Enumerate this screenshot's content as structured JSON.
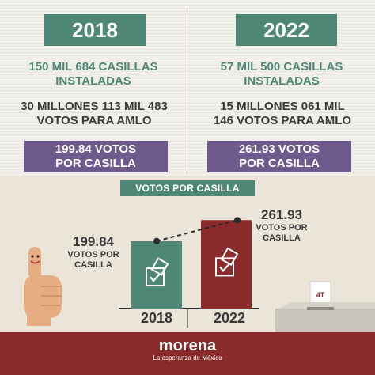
{
  "left": {
    "year": "2018",
    "casillas_line1": "150 MIL 684 CASILLAS",
    "casillas_line2": "INSTALADAS",
    "votes_line1": "30 MILLONES 113 MIL 483",
    "votes_line2": "VOTOS PARA AMLO",
    "ratio_line1": "199.84 VOTOS",
    "ratio_line2": "POR CASILLA"
  },
  "right": {
    "year": "2022",
    "casillas_line1": "57 MIL 500 CASILLAS",
    "casillas_line2": "INSTALADAS",
    "votes_line1": "15 MILLONES 061 MIL",
    "votes_line2": "146 VOTOS PARA AMLO",
    "ratio_line1": "261.93 VOTOS",
    "ratio_line2": "POR CASILLA"
  },
  "chart_data": {
    "type": "bar",
    "title": "VOTOS POR CASILLA",
    "categories": [
      "2018",
      "2022"
    ],
    "values": [
      199.84,
      261.93
    ],
    "bar_colors": [
      "#4f8777",
      "#8b2a2a"
    ],
    "ylim": [
      0,
      300
    ],
    "annotations": [
      {
        "value": "199.84",
        "line1": "VOTOS POR",
        "line2": "CASILLA"
      },
      {
        "value": "261.93",
        "line1": "VOTOS POR",
        "line2": "CASILLA"
      }
    ]
  },
  "ballot_box": {
    "label": "4T"
  },
  "footer": {
    "logo": "morena",
    "tagline": "La esperanza de México"
  },
  "colors": {
    "teal": "#4f8777",
    "purple": "#6e5a8c",
    "maroon": "#8b2a2a"
  },
  "icons": [
    "ballot-box-icon",
    "thumbs-up-icon",
    "checkmark-icon"
  ]
}
